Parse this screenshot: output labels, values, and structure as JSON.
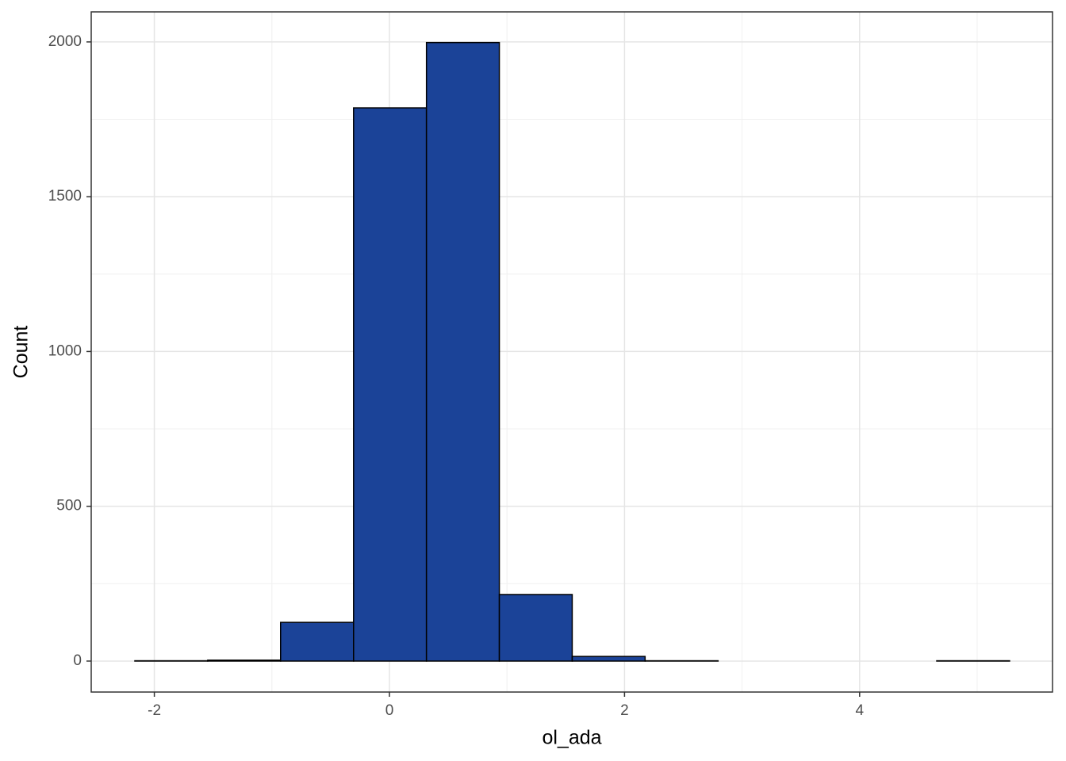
{
  "chart_data": {
    "type": "histogram",
    "x_label": "ol_ada",
    "y_label": "Count",
    "bins": [
      -2.166,
      -1.546,
      -0.926,
      -0.305,
      0.315,
      0.935,
      1.555,
      2.175,
      2.796,
      3.416,
      4.036,
      4.656,
      5.276
    ],
    "counts": [
      1,
      3,
      125,
      1787,
      1998,
      215,
      15,
      1,
      0,
      0,
      0,
      1
    ],
    "color": "#1b4398",
    "edge_color": "#000000",
    "xlim": [
      -2.537,
      5.641
    ],
    "ylim": [
      -100,
      2097
    ],
    "xticks": [
      -2,
      0,
      2,
      4
    ],
    "yticks": [
      0,
      500,
      1000,
      1500,
      2000
    ],
    "x_minor_ticks": [
      -1,
      1,
      3,
      5
    ],
    "y_minor_ticks": [
      250,
      750,
      1250,
      1750
    ],
    "grid": true
  }
}
